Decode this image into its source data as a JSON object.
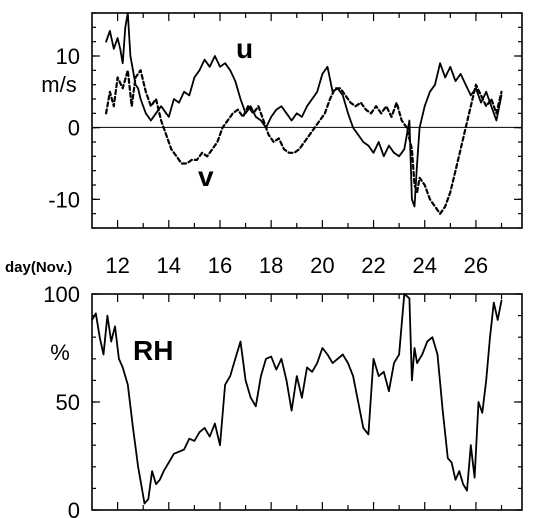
{
  "x_axis": {
    "label": "day(Nov.)",
    "ticks": [
      "12",
      "14",
      "16",
      "18",
      "20",
      "22",
      "24",
      "26"
    ]
  },
  "chart_data": [
    {
      "type": "line",
      "unit_label": "m/s",
      "x_range": [
        11,
        27.8
      ],
      "ylim": [
        -14,
        16
      ],
      "yticks": [
        "10",
        "0",
        "-10"
      ],
      "series": [
        {
          "name": "u",
          "style": "solid",
          "x": [
            11.55,
            11.7,
            11.85,
            12.0,
            12.1,
            12.2,
            12.3,
            12.4,
            12.5,
            12.6,
            12.7,
            12.8,
            12.9,
            13.0,
            13.1,
            13.3,
            13.5,
            13.7,
            13.9,
            14.0,
            14.2,
            14.4,
            14.6,
            14.8,
            15.0,
            15.2,
            15.4,
            15.6,
            15.8,
            16.0,
            16.2,
            16.4,
            16.6,
            16.8,
            17.0,
            17.2,
            17.4,
            17.6,
            17.8,
            18.0,
            18.2,
            18.4,
            18.6,
            18.8,
            19.0,
            19.2,
            19.4,
            19.6,
            19.8,
            20.0,
            20.2,
            20.4,
            20.6,
            20.8,
            21.0,
            21.2,
            21.4,
            21.6,
            21.8,
            22.0,
            22.2,
            22.4,
            22.6,
            22.8,
            23.0,
            23.2,
            23.4,
            23.5,
            23.6,
            23.7,
            23.8,
            24.0,
            24.2,
            24.4,
            24.6,
            24.8,
            25.0,
            25.2,
            25.4,
            25.6,
            25.8,
            26.0,
            26.2,
            26.4,
            26.6,
            26.8,
            27.0
          ],
          "values": [
            12,
            13.5,
            11,
            12.5,
            11,
            9,
            14,
            16,
            10,
            8,
            6,
            5.5,
            4,
            3,
            2,
            1,
            2,
            3,
            2,
            1.5,
            4,
            3.5,
            5,
            4.5,
            7,
            8,
            9.5,
            8.5,
            10,
            8.5,
            9,
            8,
            6.5,
            4,
            2,
            3,
            1.5,
            1,
            0,
            1.5,
            2.5,
            3,
            2,
            1,
            2,
            1.5,
            3,
            4,
            5,
            7.5,
            8.5,
            5,
            5.5,
            4.5,
            2,
            0,
            -1,
            -2,
            -2.5,
            -3.5,
            -2,
            -4,
            -2.5,
            -3.5,
            -4,
            -3,
            1,
            -10,
            -11,
            -5,
            0,
            3,
            5,
            6,
            9,
            7,
            8.5,
            6.5,
            7.5,
            6,
            4.5,
            5.5,
            3.5,
            5,
            3,
            1,
            4.5
          ]
        },
        {
          "name": "v",
          "style": "dashed",
          "x": [
            11.55,
            11.7,
            11.85,
            12.0,
            12.2,
            12.4,
            12.55,
            12.7,
            12.9,
            13.1,
            13.3,
            13.5,
            13.7,
            13.9,
            14.1,
            14.3,
            14.5,
            14.7,
            14.9,
            15.1,
            15.3,
            15.5,
            15.7,
            15.9,
            16.1,
            16.3,
            16.5,
            16.7,
            16.9,
            17.1,
            17.3,
            17.5,
            17.7,
            17.9,
            18.1,
            18.3,
            18.5,
            18.7,
            18.9,
            19.1,
            19.3,
            19.5,
            19.7,
            19.9,
            20.1,
            20.3,
            20.5,
            20.7,
            20.9,
            21.1,
            21.3,
            21.5,
            21.7,
            21.9,
            22.1,
            22.3,
            22.5,
            22.7,
            22.9,
            23.1,
            23.3,
            23.5,
            23.6,
            23.7,
            23.8,
            24.0,
            24.2,
            24.4,
            24.6,
            24.8,
            25.0,
            25.2,
            25.4,
            25.6,
            25.8,
            26.0,
            26.2,
            26.4,
            26.6,
            26.8,
            27.0
          ],
          "values": [
            2,
            5,
            3,
            7,
            5.5,
            8,
            3,
            7,
            8,
            5,
            3,
            4,
            1,
            -1,
            -3,
            -4,
            -5,
            -5,
            -4.5,
            -4.5,
            -3.5,
            -4,
            -3,
            -2,
            0,
            1,
            2,
            2.5,
            1.5,
            3,
            2,
            3,
            1,
            -1,
            -2,
            -1.5,
            -3,
            -3.5,
            -3.5,
            -3,
            -2,
            -1,
            0,
            1,
            2,
            4,
            5.5,
            5.5,
            4.5,
            3.5,
            3,
            3.5,
            2.5,
            2,
            3,
            2,
            3,
            1.5,
            3.5,
            1,
            0,
            -3,
            -8,
            -9,
            -7,
            -8,
            -10,
            -11,
            -12,
            -11,
            -9,
            -6,
            -3,
            0,
            3,
            6,
            4.5,
            3,
            4,
            2,
            5
          ]
        }
      ]
    },
    {
      "type": "line",
      "unit_label": "%",
      "x_range": [
        11,
        27.8
      ],
      "ylim": [
        0,
        100
      ],
      "yticks": [
        "100",
        "50",
        "0"
      ],
      "series": [
        {
          "name": "RH",
          "style": "solid",
          "x": [
            11.0,
            11.15,
            11.3,
            11.45,
            11.6,
            11.75,
            11.9,
            12.05,
            12.2,
            12.4,
            12.6,
            12.8,
            12.95,
            13.05,
            13.2,
            13.35,
            13.5,
            13.65,
            13.8,
            14.0,
            14.2,
            14.4,
            14.6,
            14.8,
            15.0,
            15.2,
            15.4,
            15.6,
            15.8,
            16.0,
            16.2,
            16.4,
            16.6,
            16.8,
            17.0,
            17.2,
            17.4,
            17.6,
            17.8,
            18.0,
            18.2,
            18.4,
            18.6,
            18.8,
            19.0,
            19.2,
            19.4,
            19.6,
            19.8,
            20.0,
            20.2,
            20.4,
            20.6,
            20.8,
            21.0,
            21.2,
            21.4,
            21.6,
            21.8,
            22.0,
            22.2,
            22.4,
            22.6,
            22.8,
            23.0,
            23.2,
            23.4,
            23.5,
            23.6,
            23.7,
            23.9,
            24.1,
            24.3,
            24.5,
            24.7,
            24.9,
            25.05,
            25.2,
            25.35,
            25.5,
            25.65,
            25.8,
            25.95,
            26.1,
            26.25,
            26.4,
            26.55,
            26.7,
            26.85,
            27.0
          ],
          "values": [
            88,
            91,
            80,
            72,
            90,
            78,
            85,
            70,
            66,
            58,
            38,
            20,
            10,
            3,
            5,
            18,
            12,
            14,
            18,
            22,
            26,
            27,
            28,
            33,
            32,
            36,
            38,
            34,
            40,
            30,
            58,
            62,
            70,
            78,
            60,
            52,
            48,
            62,
            70,
            71,
            65,
            70,
            60,
            46,
            62,
            52,
            66,
            64,
            68,
            75,
            72,
            68,
            70,
            72,
            68,
            62,
            50,
            38,
            35,
            70,
            62,
            64,
            55,
            68,
            72,
            100,
            98,
            60,
            75,
            68,
            72,
            78,
            80,
            72,
            46,
            24,
            22,
            14,
            18,
            12,
            9,
            30,
            15,
            50,
            45,
            60,
            80,
            96,
            88,
            97
          ]
        }
      ]
    }
  ]
}
